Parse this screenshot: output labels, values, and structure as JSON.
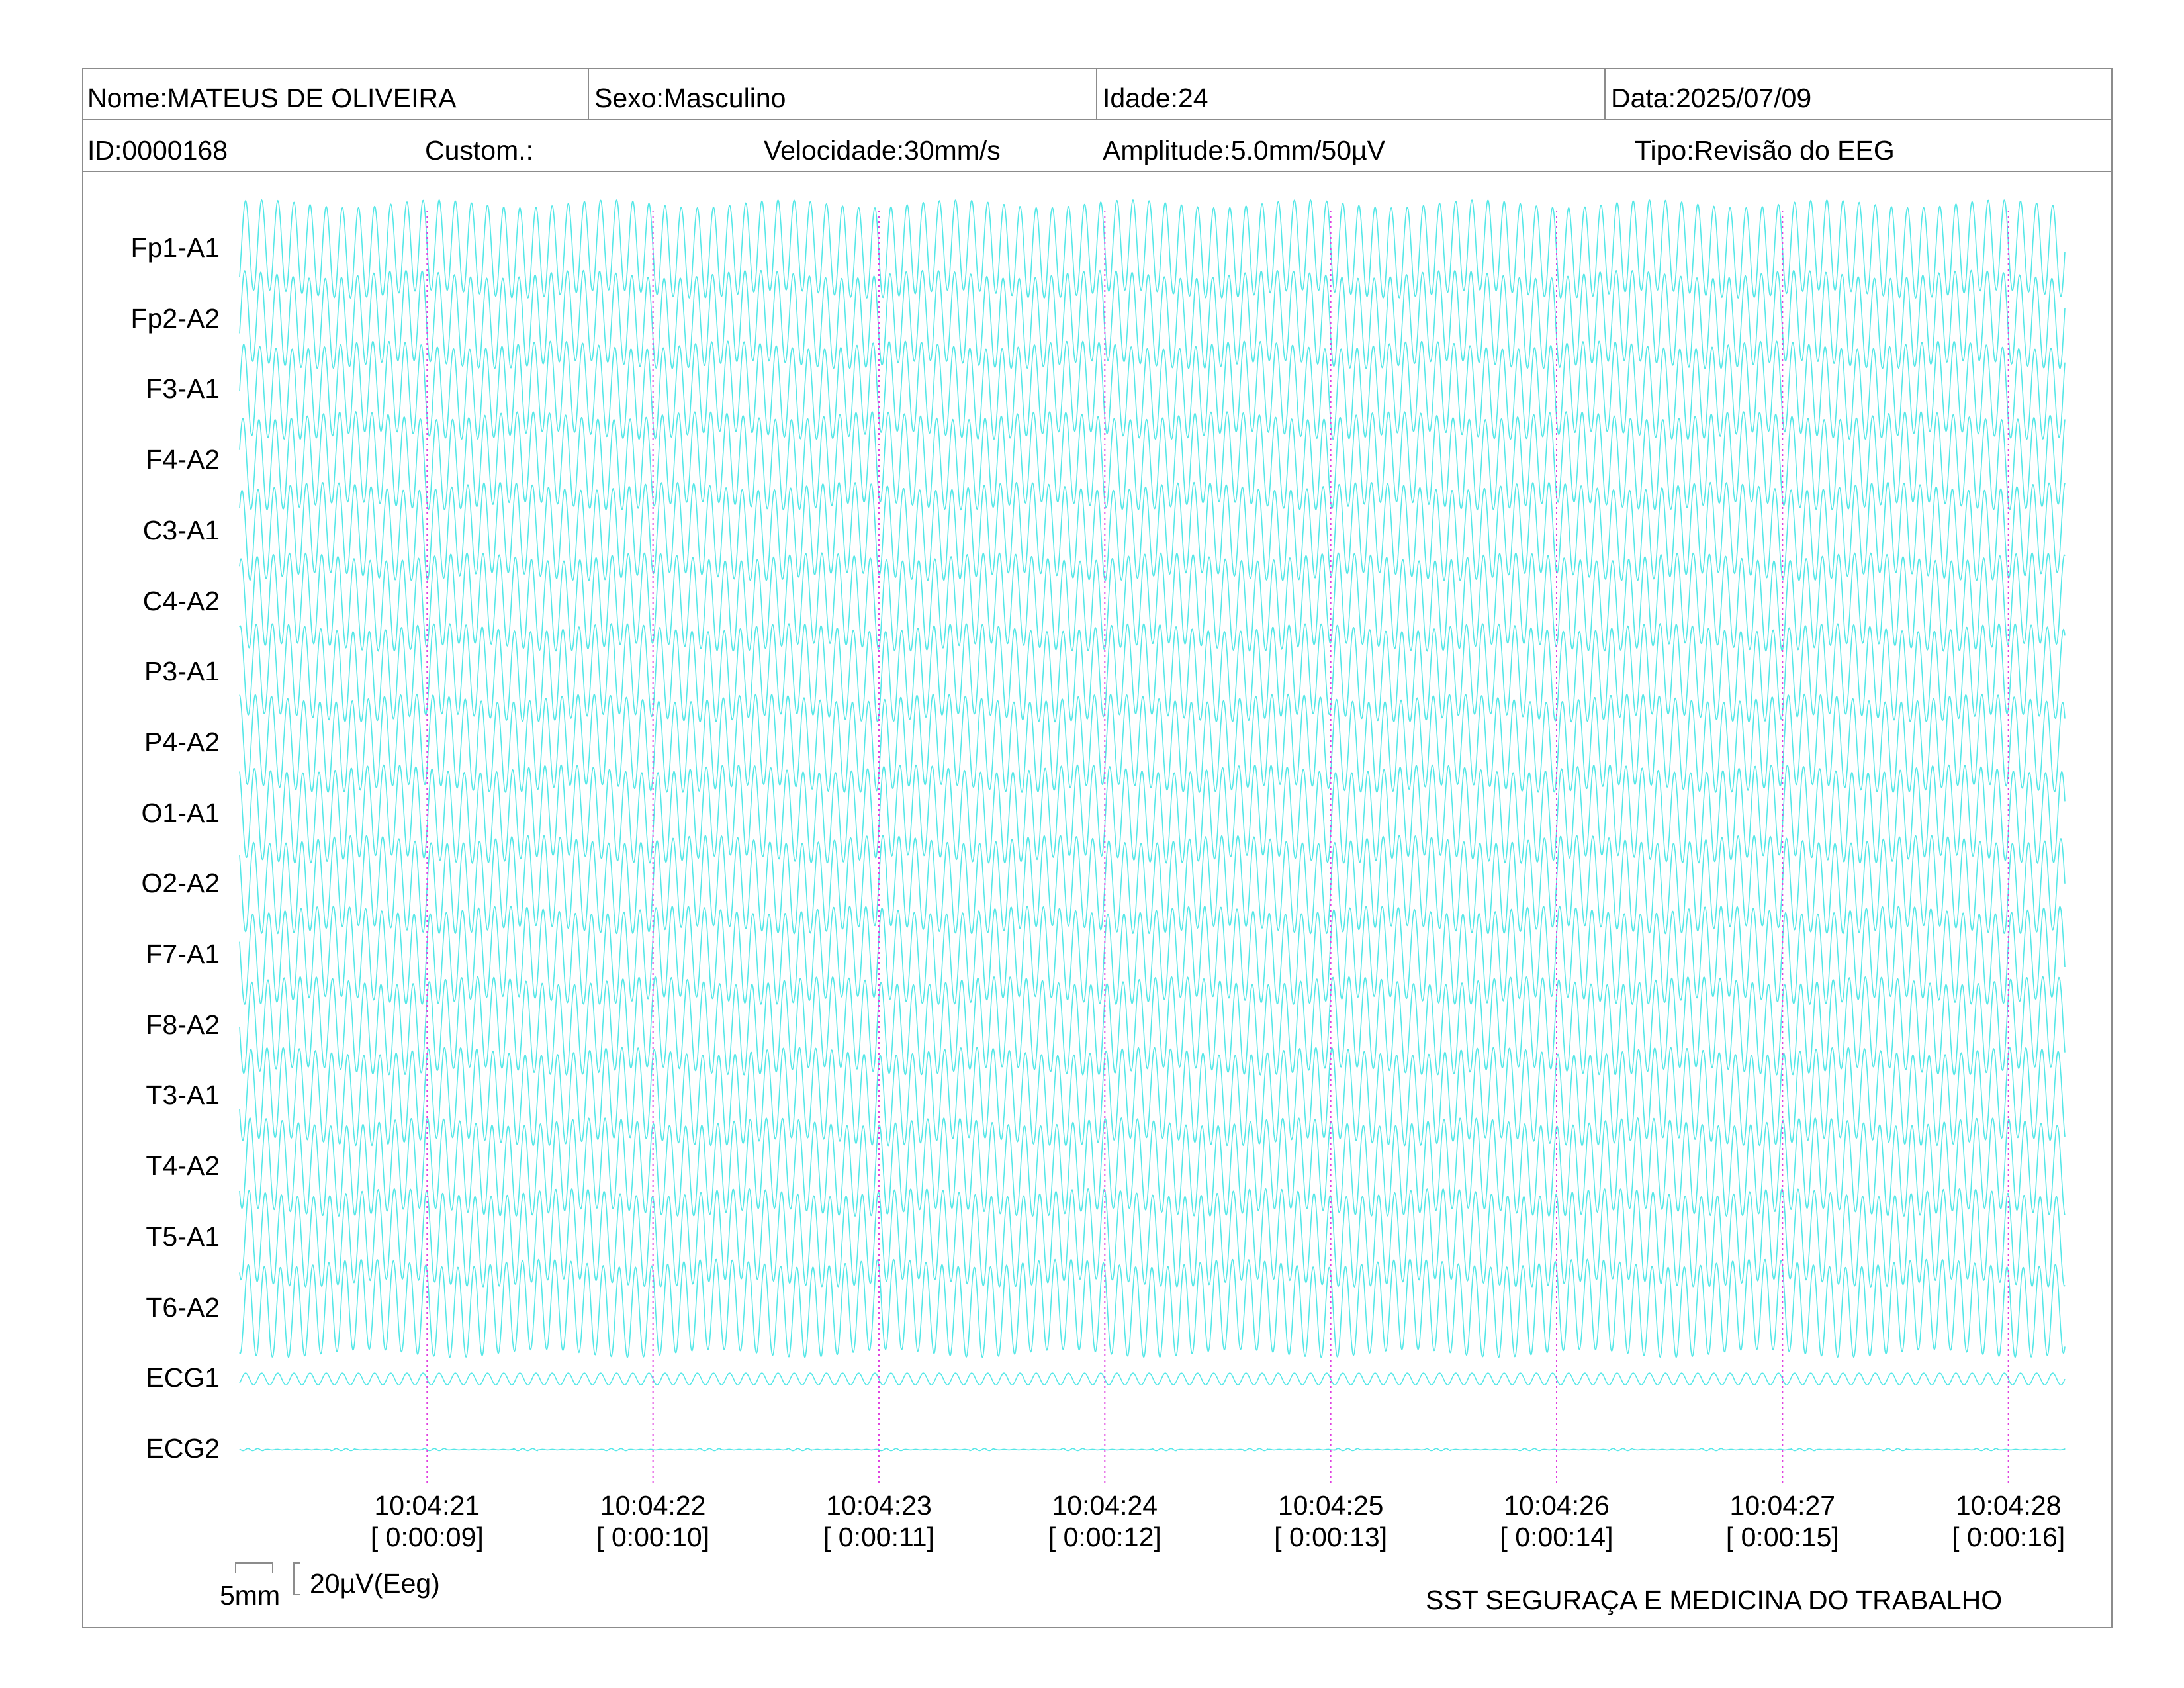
{
  "header": {
    "nome": "Nome:MATEUS DE OLIVEIRA",
    "sexo": "Sexo:Masculino",
    "idade": "Idade:24",
    "data": "Data:2025/07/09",
    "id": "ID:0000168",
    "custom": "Custom.:",
    "velocidade": "Velocidade:30mm/s",
    "amplitude": "Amplitude:5.0mm/50µV",
    "tipo": "Tipo:Revisão do EEG"
  },
  "colors": {
    "trace": "#37e3e3",
    "marker": "#e040e0",
    "border": "#8c8c8c"
  },
  "chart_data": {
    "type": "line",
    "channels": [
      "Fp1-A1",
      "Fp2-A2",
      "F3-A1",
      "F4-A2",
      "C3-A1",
      "C4-A2",
      "P3-A1",
      "P4-A2",
      "O1-A1",
      "O2-A2",
      "F7-A1",
      "F8-A2",
      "T3-A1",
      "T4-A2",
      "T5-A1",
      "T6-A2",
      "ECG1",
      "ECG2"
    ],
    "time_markers": [
      {
        "clock": "10:04:21",
        "elapsed": "[ 0:00:09]"
      },
      {
        "clock": "10:04:22",
        "elapsed": "[ 0:00:10]"
      },
      {
        "clock": "10:04:23",
        "elapsed": "[ 0:00:11]"
      },
      {
        "clock": "10:04:24",
        "elapsed": "[ 0:00:12]"
      },
      {
        "clock": "10:04:25",
        "elapsed": "[ 0:00:13]"
      },
      {
        "clock": "10:04:26",
        "elapsed": "[ 0:00:14]"
      },
      {
        "clock": "10:04:27",
        "elapsed": "[ 0:00:15]"
      },
      {
        "clock": "10:04:28",
        "elapsed": "[ 0:00:16]"
      }
    ],
    "window_start_s": 8.17,
    "window_end_s": 16.25,
    "eeg_frequency_hz": 14,
    "ecg1_frequency_hz": 14,
    "grid": false
  },
  "scale": {
    "time_label": "5mm",
    "amplitude_label": "20µV(Eeg)"
  },
  "footer": {
    "institution": "SST SEGURAÇA E MEDICINA DO TRABALHO"
  }
}
